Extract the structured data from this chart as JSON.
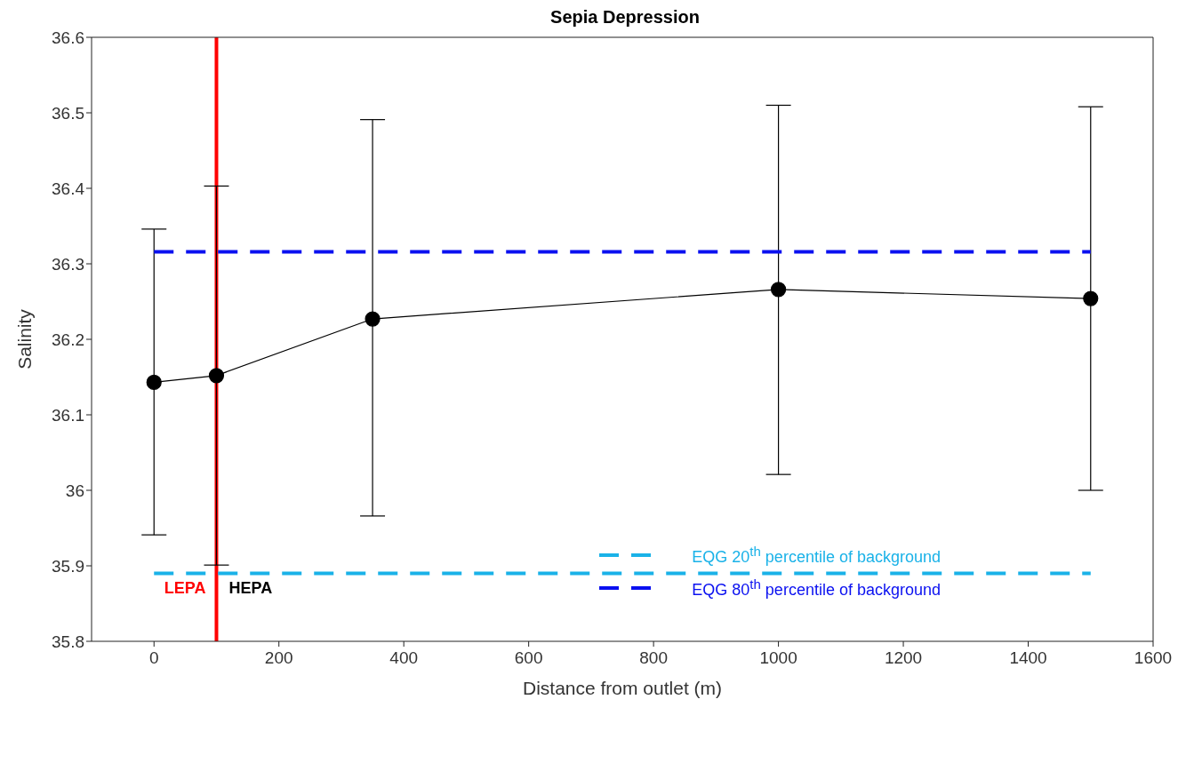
{
  "chart_data": {
    "type": "line",
    "title": "Sepia Depression",
    "xlabel": "Distance from outlet (m)",
    "ylabel": "Salinity",
    "series": [
      {
        "color": "#000000",
        "x": [
          0,
          100,
          350,
          1000,
          1500
        ],
        "values": [
          36.143,
          36.152,
          36.227,
          36.266,
          36.254
        ],
        "errors": [
          [
            35.941,
            36.346
          ],
          [
            35.901,
            36.403
          ],
          [
            35.966,
            36.491
          ],
          [
            36.021,
            36.51
          ],
          [
            36.0,
            36.508
          ]
        ],
        "marker": "circle",
        "line_style": "solid"
      },
      {
        "name": "EQG 20$^{th}$ percentile of background",
        "color": "#1ab2e8",
        "x": [
          0,
          1500
        ],
        "values": [
          35.89,
          35.89
        ],
        "marker": "none",
        "line_style": "dashed"
      },
      {
        "name": "EQG 80$^{th}$ percentile of background",
        "color": "#0a10f0",
        "x": [
          0,
          1500
        ],
        "values": [
          36.316,
          36.316
        ],
        "marker": "none",
        "line_style": "dashed"
      }
    ],
    "ref_lines": [
      {
        "axis": "x",
        "value": 100,
        "color": "#ff0000",
        "line_style": "solid"
      }
    ],
    "annotations": [
      "LEPA",
      "HEPA"
    ],
    "xlim": [
      -100,
      1600
    ],
    "xticks": [
      0,
      200,
      400,
      600,
      800,
      1000,
      1200,
      1400,
      1600
    ],
    "ylim": [
      35.8,
      36.6
    ],
    "yticks": [
      35.8,
      35.9,
      36,
      36.1,
      36.2,
      36.3,
      36.4,
      36.5,
      36.6
    ],
    "grid": false,
    "legend": "bottom right"
  }
}
